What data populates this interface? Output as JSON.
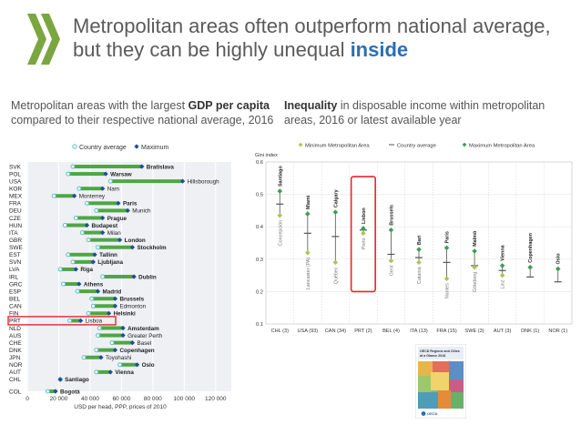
{
  "header": {
    "title_line1": "Metropolitan areas often outperform national average,",
    "title_line2_pre": "but they can be highly unequal ",
    "title_line2_hl": "inside",
    "accent": "#2a6fb6",
    "logo_color": "#7aa640"
  },
  "left_subtitle": {
    "pre": "Metropolitan areas with the largest ",
    "bold": "GDP per capita",
    "post": " compared to their respective national average, 2016"
  },
  "right_subtitle": {
    "bold": "Inequality",
    "post": " in disposable income within metropolitan areas, 2016 or latest available year"
  },
  "chart_data": [
    {
      "type": "dumbbell",
      "legend": [
        "Country average",
        "Maximum"
      ],
      "xlabel": "USD per head, PPP, prices of 2010",
      "xlim": [
        0,
        130000
      ],
      "xticks": [
        0,
        20000,
        40000,
        60000,
        80000,
        100000,
        120000
      ],
      "xtick_labels": [
        "0",
        "20 000",
        "40 000",
        "60 000",
        "80 000",
        "100 000",
        "120 000"
      ],
      "highlight": "PRT",
      "colors": {
        "bar": "#4ea646",
        "avg": "#5bc0c8",
        "max": "#1f4e9a",
        "highlight": "#e8262b"
      },
      "rows": [
        {
          "country": "SVK",
          "avg": 29000,
          "max": 73000,
          "city": "Bratislava",
          "bold": true
        },
        {
          "country": "POL",
          "avg": 26000,
          "max": 50000,
          "city": "Warsaw",
          "bold": true
        },
        {
          "country": "USA",
          "avg": 53000,
          "max": 99000,
          "city": "Hillsborough",
          "bold": false
        },
        {
          "country": "KOR",
          "avg": 33000,
          "max": 48000,
          "city": "Nam",
          "bold": false
        },
        {
          "country": "MEX",
          "avg": 17000,
          "max": 30000,
          "city": "Monterrey",
          "bold": false
        },
        {
          "country": "FRA",
          "avg": 38000,
          "max": 58000,
          "city": "Paris",
          "bold": true
        },
        {
          "country": "DEU",
          "avg": 44000,
          "max": 64000,
          "city": "Munich",
          "bold": false
        },
        {
          "country": "CZE",
          "avg": 31000,
          "max": 48000,
          "city": "Prague",
          "bold": true
        },
        {
          "country": "HUN",
          "avg": 24000,
          "max": 38000,
          "city": "Budapest",
          "bold": true
        },
        {
          "country": "ITA",
          "avg": 35000,
          "max": 48000,
          "city": "Milan",
          "bold": false
        },
        {
          "country": "GBR",
          "avg": 39000,
          "max": 59000,
          "city": "London",
          "bold": true
        },
        {
          "country": "SWE",
          "avg": 45000,
          "max": 67000,
          "city": "Stockholm",
          "bold": true
        },
        {
          "country": "EST",
          "avg": 26000,
          "max": 43000,
          "city": "Tallinn",
          "bold": true
        },
        {
          "country": "SVN",
          "avg": 29000,
          "max": 42000,
          "city": "Ljubljana",
          "bold": true
        },
        {
          "country": "LVA",
          "avg": 21000,
          "max": 31000,
          "city": "Riga",
          "bold": true
        },
        {
          "country": "IRL",
          "avg": 48000,
          "max": 68000,
          "city": "Dublin",
          "bold": true
        },
        {
          "country": "GRC",
          "avg": 23000,
          "max": 33000,
          "city": "Athens",
          "bold": true
        },
        {
          "country": "ESP",
          "avg": 32000,
          "max": 45000,
          "city": "Madrid",
          "bold": true
        },
        {
          "country": "BEL",
          "avg": 41000,
          "max": 56000,
          "city": "Brussels",
          "bold": true
        },
        {
          "country": "CAN",
          "avg": 42000,
          "max": 56000,
          "city": "Edmonton",
          "bold": false
        },
        {
          "country": "FIN",
          "avg": 39000,
          "max": 52000,
          "city": "Helsinki",
          "bold": true
        },
        {
          "country": "PRT",
          "avg": 27000,
          "max": 34000,
          "city": "Lisboa",
          "bold": false
        },
        {
          "country": "NLD",
          "avg": 46000,
          "max": 61000,
          "city": "Amsterdam",
          "bold": true
        },
        {
          "country": "AUS",
          "avg": 45000,
          "max": 61000,
          "city": "Greater Perth",
          "bold": false
        },
        {
          "country": "CHE",
          "avg": 54000,
          "max": 67000,
          "city": "Basel",
          "bold": false
        },
        {
          "country": "DNK",
          "avg": 44000,
          "max": 56000,
          "city": "Copenhagen",
          "bold": true
        },
        {
          "country": "JPN",
          "avg": 36000,
          "max": 47000,
          "city": "Toyohashi",
          "bold": false
        },
        {
          "country": "NOR",
          "avg": 59000,
          "max": 70000,
          "city": "Oslo",
          "bold": true
        },
        {
          "country": "AUT",
          "avg": 44000,
          "max": 53000,
          "city": "Vienna",
          "bold": true
        },
        {
          "country": "CHL",
          "avg": 21000,
          "max": 21000,
          "city": "Santiago",
          "bold": true
        },
        {
          "country": "COL",
          "avg": 13000,
          "max": 18000,
          "city": "Bogotá",
          "bold": true
        }
      ]
    },
    {
      "type": "range-dot",
      "legend": [
        "Minimum Metropolitan Area",
        "Country average",
        "Maximum Metropolitan Area"
      ],
      "ylabel": "Gini index",
      "ylim": [
        0.1,
        0.6
      ],
      "yticks": [
        0.1,
        0.2,
        0.3,
        0.4,
        0.5,
        0.6
      ],
      "ytick_labels": [
        "0.1",
        "0.2",
        "0.3",
        "0.4",
        "0.5",
        "0.6"
      ],
      "highlight": "PRT (2)",
      "colors": {
        "line": "#666666",
        "min": "#a9c657",
        "max": "#3f9d5a",
        "avg": "#555555",
        "city": "#7a7a7a",
        "highlight": "#e8262b"
      },
      "groups": [
        {
          "label": "CHL (3)",
          "min": 0.435,
          "avg": 0.47,
          "max": 0.51,
          "min_city": "Concepción",
          "max_city": "Santiago"
        },
        {
          "label": "USA (93)",
          "min": 0.32,
          "avg": 0.38,
          "max": 0.44,
          "min_city": "Lancaster (PA)",
          "max_city": "Miami"
        },
        {
          "label": "CAN (34)",
          "min": 0.29,
          "avg": 0.37,
          "max": 0.445,
          "min_city": "Québec",
          "max_city": "Calgary"
        },
        {
          "label": "PRT (2)",
          "min": 0.38,
          "avg": 0.39,
          "max": 0.395,
          "min_city": "Porto",
          "max_city": "Lisbon"
        },
        {
          "label": "BEL (4)",
          "min": 0.295,
          "avg": 0.315,
          "max": 0.39,
          "min_city": "Gent",
          "max_city": "Brussels"
        },
        {
          "label": "ITA (13)",
          "min": 0.29,
          "avg": 0.305,
          "max": 0.33,
          "min_city": "Catania",
          "max_city": "Bari"
        },
        {
          "label": "FRA (15)",
          "min": 0.24,
          "avg": 0.29,
          "max": 0.335,
          "min_city": "Nantes",
          "max_city": "Paris"
        },
        {
          "label": "SWE (3)",
          "min": 0.275,
          "avg": 0.28,
          "max": 0.325,
          "min_city": "Göteborg",
          "max_city": "Malmö"
        },
        {
          "label": "AUT (3)",
          "min": 0.25,
          "avg": 0.265,
          "max": 0.28,
          "min_city": "Linz",
          "max_city": "Vienna"
        },
        {
          "label": "DNK (1)",
          "min": 0.275,
          "avg": 0.245,
          "max": 0.275,
          "min_city": "",
          "max_city": "Copenhagen"
        },
        {
          "label": "NOR (1)",
          "min": 0.27,
          "avg": 0.23,
          "max": 0.27,
          "min_city": "",
          "max_city": "Oslo"
        }
      ]
    }
  ],
  "book": {
    "title_line1": "OECD Regions and Cities",
    "title_line2": "at a Glance 2018",
    "publisher": "OECD"
  }
}
